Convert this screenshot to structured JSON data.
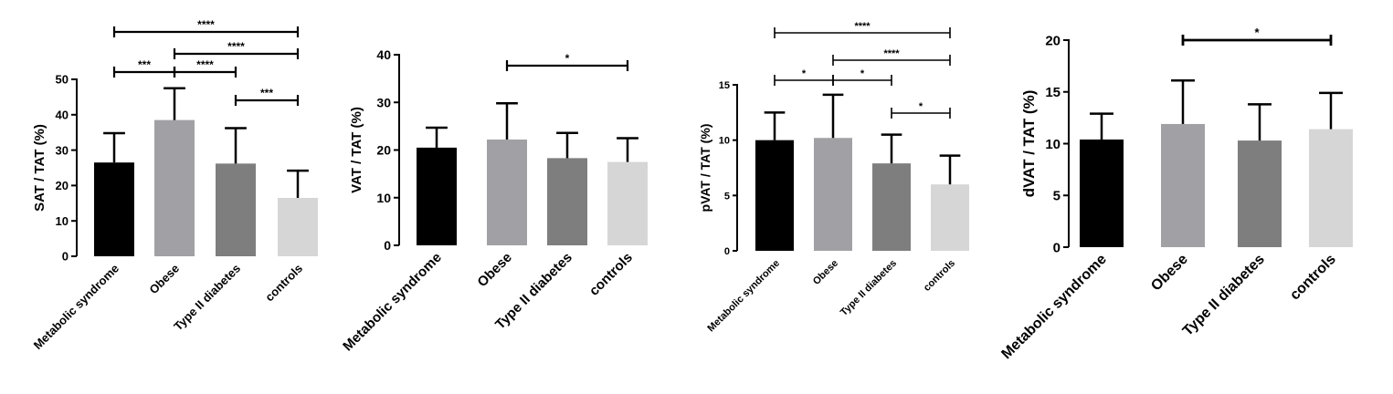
{
  "colors": {
    "group_fills": [
      "#000000",
      "#a1a1a5",
      "#7e7e7e",
      "#d6d6d6"
    ],
    "axis": "#000000"
  },
  "chart_data": [
    {
      "type": "bar",
      "ylabel": "SAT / TAT (%)",
      "categories": [
        "Metabolic syndrome",
        "Obese",
        "Type II diabetes",
        "controls"
      ],
      "values": [
        26.5,
        38.5,
        26.2,
        16.5
      ],
      "errors": [
        8.3,
        9.0,
        10.0,
        7.7
      ],
      "ylim": [
        0,
        50
      ],
      "yticks": [
        0,
        10,
        20,
        30,
        40,
        50
      ],
      "significance": [
        {
          "from": 0,
          "to": 3,
          "label": "****"
        },
        {
          "from": 1,
          "to": 3,
          "label": "****"
        },
        {
          "from": 0,
          "to": 1,
          "label": "***"
        },
        {
          "from": 1,
          "to": 2,
          "label": "****"
        },
        {
          "from": 2,
          "to": 3,
          "label": "***"
        }
      ]
    },
    {
      "type": "bar",
      "ylabel": "VAT / TAT (%)",
      "categories": [
        "Metabolic syndrome",
        "Obese",
        "Type II diabetes",
        "controls"
      ],
      "values": [
        20.5,
        22.2,
        18.3,
        17.5
      ],
      "errors": [
        4.2,
        7.6,
        5.3,
        5.0
      ],
      "ylim": [
        0,
        40
      ],
      "yticks": [
        0,
        10,
        20,
        30,
        40
      ],
      "significance": [
        {
          "from": 1,
          "to": 3,
          "label": "*"
        }
      ]
    },
    {
      "type": "bar",
      "ylabel": "pVAT  / TAT (%)",
      "categories": [
        "Metabolic syndrome",
        "Obese",
        "Type II diabetes",
        "controls"
      ],
      "values": [
        10.0,
        10.2,
        7.9,
        6.0
      ],
      "errors": [
        2.5,
        3.9,
        2.6,
        2.6
      ],
      "ylim": [
        0,
        15
      ],
      "yticks": [
        0,
        5,
        10,
        15
      ],
      "significance": [
        {
          "from": 0,
          "to": 3,
          "label": "****"
        },
        {
          "from": 1,
          "to": 3,
          "label": "****"
        },
        {
          "from": 0,
          "to": 1,
          "label": "*"
        },
        {
          "from": 1,
          "to": 2,
          "label": "*"
        },
        {
          "from": 2,
          "to": 3,
          "label": "*"
        }
      ]
    },
    {
      "type": "bar",
      "ylabel": "dVAT / TAT (%)",
      "categories": [
        "Metabolic syndrome",
        "Obese",
        "Type II diabetes",
        "controls"
      ],
      "values": [
        10.4,
        11.9,
        10.3,
        11.4
      ],
      "errors": [
        2.5,
        4.2,
        3.5,
        3.5
      ],
      "ylim": [
        0,
        20
      ],
      "yticks": [
        0,
        5,
        10,
        15,
        20
      ],
      "significance": [
        {
          "from": 1,
          "to": 3,
          "label": "*"
        }
      ]
    }
  ]
}
